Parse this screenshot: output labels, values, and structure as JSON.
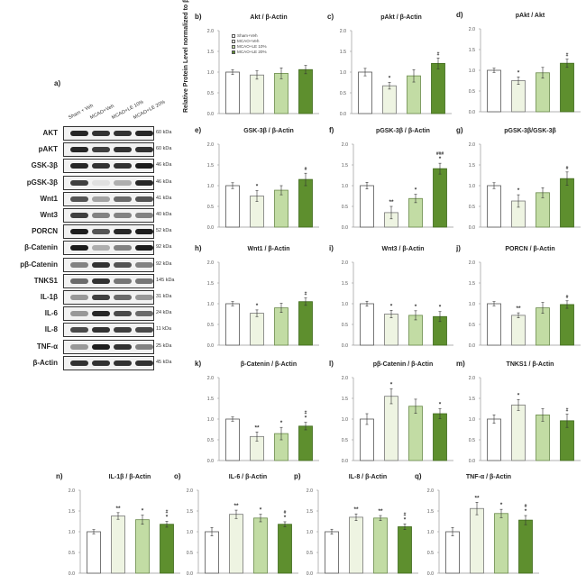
{
  "blot": {
    "label": "a)",
    "columns": [
      "Sham + Veh",
      "MCAO+Veh",
      "MCAO+LE 10%",
      "MCAO+LE 20%"
    ],
    "rows": [
      {
        "name": "AKT",
        "kda": "60 kDa",
        "intensity": [
          0.9,
          0.85,
          0.85,
          0.9
        ]
      },
      {
        "name": "pAKT",
        "kda": "60 kDa",
        "intensity": [
          0.9,
          0.8,
          0.85,
          0.85
        ]
      },
      {
        "name": "GSK-3β",
        "kda": "46 kDa",
        "intensity": [
          0.9,
          0.85,
          0.85,
          0.95
        ]
      },
      {
        "name": "pGSK-3β",
        "kda": "46 kDa",
        "intensity": [
          0.8,
          0.08,
          0.3,
          0.9
        ]
      },
      {
        "name": "Wnt1",
        "kda": "41 kDa",
        "intensity": [
          0.7,
          0.35,
          0.6,
          0.7
        ]
      },
      {
        "name": "Wnt3",
        "kda": "40 kDa",
        "intensity": [
          0.8,
          0.5,
          0.5,
          0.5
        ]
      },
      {
        "name": "PORCN",
        "kda": "52 kDa",
        "intensity": [
          0.95,
          0.7,
          0.9,
          0.95
        ]
      },
      {
        "name": "β-Catenin",
        "kda": "92 kDa",
        "intensity": [
          0.95,
          0.3,
          0.5,
          0.95
        ]
      },
      {
        "name": "pβ-Catenin",
        "kda": "92 kDa",
        "intensity": [
          0.5,
          0.85,
          0.7,
          0.5
        ]
      },
      {
        "name": "TNKS1",
        "kda": "145 kDa",
        "intensity": [
          0.6,
          0.85,
          0.55,
          0.55
        ]
      },
      {
        "name": "IL-1β",
        "kda": "31 kDa",
        "intensity": [
          0.4,
          0.8,
          0.6,
          0.4
        ]
      },
      {
        "name": "IL-6",
        "kda": "24 kDa",
        "intensity": [
          0.4,
          0.9,
          0.75,
          0.6
        ]
      },
      {
        "name": "IL-8",
        "kda": "11 kDa",
        "intensity": [
          0.75,
          0.85,
          0.8,
          0.75
        ]
      },
      {
        "name": "TNF-α",
        "kda": "25 kDa",
        "intensity": [
          0.4,
          0.95,
          0.85,
          0.5
        ]
      },
      {
        "name": "β-Actin",
        "kda": "45 kDa",
        "intensity": [
          0.85,
          0.85,
          0.85,
          0.85
        ]
      }
    ]
  },
  "ylabel": "Relative Protein Level normalized to β-Actin",
  "legend": [
    "Sham+Veh",
    "MCAO+Veh",
    "MCAO+LE 10%",
    "MCAO+LE 20%"
  ],
  "colors": [
    "#ffffff",
    "#eef4e2",
    "#c2dca4",
    "#5e8f2e"
  ],
  "chart_data": [
    {
      "panel": "b)",
      "type": "bar",
      "title": "Akt / β-Actin",
      "ylim": [
        0,
        2
      ],
      "yticks": [
        "0.0",
        "0.5",
        "1.0",
        "1.5",
        "2.0"
      ],
      "values": [
        1.0,
        0.93,
        0.97,
        1.06
      ],
      "errors": [
        0.06,
        0.1,
        0.13,
        0.1
      ],
      "annotations": [
        [],
        [],
        [],
        []
      ]
    },
    {
      "panel": "c)",
      "type": "bar",
      "title": "pAkt / β-Actin",
      "ylim": [
        0,
        2
      ],
      "yticks": [
        "0.0",
        "0.5",
        "1.0",
        "1.5",
        "2.0"
      ],
      "values": [
        1.0,
        0.67,
        0.91,
        1.21
      ],
      "errors": [
        0.09,
        0.08,
        0.15,
        0.13
      ],
      "annotations": [
        [],
        [
          "*"
        ],
        [],
        [
          "#"
        ]
      ]
    },
    {
      "panel": "d)",
      "type": "bar",
      "title": "pAkt / Akt",
      "ylim": [
        0,
        2
      ],
      "yticks": [
        "0.0",
        "0.5",
        "1.0",
        "1.5",
        "2.0"
      ],
      "values": [
        1.0,
        0.75,
        0.94,
        1.17
      ],
      "errors": [
        0.05,
        0.09,
        0.13,
        0.1
      ],
      "annotations": [
        [],
        [
          "*"
        ],
        [],
        [
          "#"
        ]
      ]
    },
    {
      "panel": "e)",
      "type": "bar",
      "title": "GSK-3β / β-Actin",
      "ylim": [
        0,
        2
      ],
      "yticks": [
        "0.0",
        "0.5",
        "1.0",
        "1.5",
        "2.0"
      ],
      "values": [
        1.0,
        0.75,
        0.89,
        1.15
      ],
      "errors": [
        0.07,
        0.13,
        0.11,
        0.15
      ],
      "annotations": [
        [],
        [
          "*"
        ],
        [],
        [
          "#"
        ]
      ]
    },
    {
      "panel": "f)",
      "type": "bar",
      "title": "pGSK-3β / β-Actin",
      "ylim": [
        0,
        2
      ],
      "yticks": [
        "0.0",
        "0.5",
        "1.0",
        "1.5",
        "2.0"
      ],
      "values": [
        1.0,
        0.35,
        0.69,
        1.41
      ],
      "errors": [
        0.08,
        0.15,
        0.1,
        0.13
      ],
      "annotations": [
        [],
        [
          "**"
        ],
        [
          "*"
        ],
        [
          "###",
          "*"
        ]
      ]
    },
    {
      "panel": "g)",
      "type": "bar",
      "title": "pGSK-3β/GSK-3β",
      "ylim": [
        0,
        2
      ],
      "yticks": [
        "0.0",
        "0.5",
        "1.0",
        "1.5",
        "2.0"
      ],
      "values": [
        1.0,
        0.63,
        0.83,
        1.17
      ],
      "errors": [
        0.07,
        0.15,
        0.12,
        0.16
      ],
      "annotations": [
        [],
        [
          "*"
        ],
        [],
        [
          "#"
        ]
      ]
    },
    {
      "panel": "h)",
      "type": "bar",
      "title": "Wnt1 / β-Actin",
      "ylim": [
        0,
        2
      ],
      "yticks": [
        "0.0",
        "0.5",
        "1.0",
        "1.5",
        "2.0"
      ],
      "values": [
        1.0,
        0.77,
        0.9,
        1.05
      ],
      "errors": [
        0.05,
        0.08,
        0.11,
        0.09
      ],
      "annotations": [
        [],
        [
          "*"
        ],
        [],
        [
          "#"
        ]
      ]
    },
    {
      "panel": "i)",
      "type": "bar",
      "title": "Wnt3 / β-Actin",
      "ylim": [
        0,
        2
      ],
      "yticks": [
        "0.0",
        "0.5",
        "1.0",
        "1.5",
        "2.0"
      ],
      "values": [
        1.0,
        0.75,
        0.72,
        0.69
      ],
      "errors": [
        0.06,
        0.09,
        0.11,
        0.12
      ],
      "annotations": [
        [],
        [
          "*"
        ],
        [
          "*"
        ],
        [
          "*"
        ]
      ]
    },
    {
      "panel": "j)",
      "type": "bar",
      "title": "PORCN / β-Actin",
      "ylim": [
        0,
        2
      ],
      "yticks": [
        "0.0",
        "0.5",
        "1.0",
        "1.5",
        "2.0"
      ],
      "values": [
        1.0,
        0.72,
        0.9,
        0.98
      ],
      "errors": [
        0.05,
        0.06,
        0.13,
        0.09
      ],
      "annotations": [
        [],
        [
          "**"
        ],
        [],
        [
          "#"
        ]
      ]
    },
    {
      "panel": "k)",
      "type": "bar",
      "title": "β-Catenin  / β-Actin",
      "ylim": [
        0,
        2
      ],
      "yticks": [
        "0.0",
        "0.5",
        "1.0",
        "1.5",
        "2.0"
      ],
      "values": [
        1.0,
        0.58,
        0.65,
        0.83
      ],
      "errors": [
        0.05,
        0.11,
        0.15,
        0.09
      ],
      "annotations": [
        [],
        [
          "**"
        ],
        [
          "*"
        ],
        [
          "#",
          "*"
        ]
      ]
    },
    {
      "panel": "l)",
      "type": "bar",
      "title": "pβ-Catenin / β-Actin",
      "ylim": [
        0,
        2
      ],
      "yticks": [
        "0.0",
        "0.5",
        "1.0",
        "1.5",
        "2.0"
      ],
      "values": [
        1.0,
        1.55,
        1.31,
        1.13
      ],
      "errors": [
        0.13,
        0.18,
        0.17,
        0.12
      ],
      "annotations": [
        [],
        [
          "*"
        ],
        [],
        [
          "*"
        ]
      ]
    },
    {
      "panel": "m)",
      "type": "bar",
      "title": "TNKS1 / β-Actin",
      "ylim": [
        0,
        2
      ],
      "yticks": [
        "0.0",
        "0.5",
        "1.0",
        "1.5",
        "2.0"
      ],
      "values": [
        1.0,
        1.34,
        1.1,
        0.96
      ],
      "errors": [
        0.1,
        0.13,
        0.15,
        0.16
      ],
      "annotations": [
        [],
        [
          "*"
        ],
        [],
        [
          "#"
        ]
      ]
    },
    {
      "panel": "n)",
      "type": "bar",
      "title": "IL-1β / β-Actin",
      "ylim": [
        0,
        2
      ],
      "yticks": [
        "0.0",
        "0.5",
        "1.0",
        "1.5",
        "2.0"
      ],
      "values": [
        1.0,
        1.38,
        1.29,
        1.18
      ],
      "errors": [
        0.05,
        0.08,
        0.11,
        0.07
      ],
      "annotations": [
        [],
        [
          "**"
        ],
        [
          "*"
        ],
        [
          "#",
          "*"
        ]
      ]
    },
    {
      "panel": "o)",
      "type": "bar",
      "title": "IL-6 / β-Actin",
      "ylim": [
        0,
        2
      ],
      "yticks": [
        "0.0",
        "0.5",
        "1.0",
        "1.5",
        "2.0"
      ],
      "values": [
        1.0,
        1.42,
        1.33,
        1.18
      ],
      "errors": [
        0.1,
        0.1,
        0.09,
        0.06
      ],
      "annotations": [
        [],
        [
          "**"
        ],
        [
          "*"
        ],
        [
          "#",
          "*"
        ]
      ]
    },
    {
      "panel": "p)",
      "type": "bar",
      "title": "IL-8 / β-Actin",
      "ylim": [
        0,
        2
      ],
      "yticks": [
        "0.0",
        "0.5",
        "1.0",
        "1.5",
        "2.0"
      ],
      "values": [
        1.0,
        1.35,
        1.33,
        1.12
      ],
      "errors": [
        0.06,
        0.08,
        0.06,
        0.07
      ],
      "annotations": [
        [],
        [
          "**"
        ],
        [
          "**"
        ],
        [
          "#",
          "*"
        ]
      ]
    },
    {
      "panel": "q)",
      "type": "bar",
      "title": "TNF-α / β-Actin",
      "ylim": [
        0,
        2
      ],
      "yticks": [
        "0.0",
        "0.5",
        "1.0",
        "1.5",
        "2.0"
      ],
      "values": [
        1.0,
        1.56,
        1.44,
        1.28
      ],
      "errors": [
        0.1,
        0.15,
        0.1,
        0.11
      ],
      "annotations": [
        [],
        [
          "**"
        ],
        [
          "*"
        ],
        [
          "#",
          "*"
        ]
      ]
    }
  ]
}
